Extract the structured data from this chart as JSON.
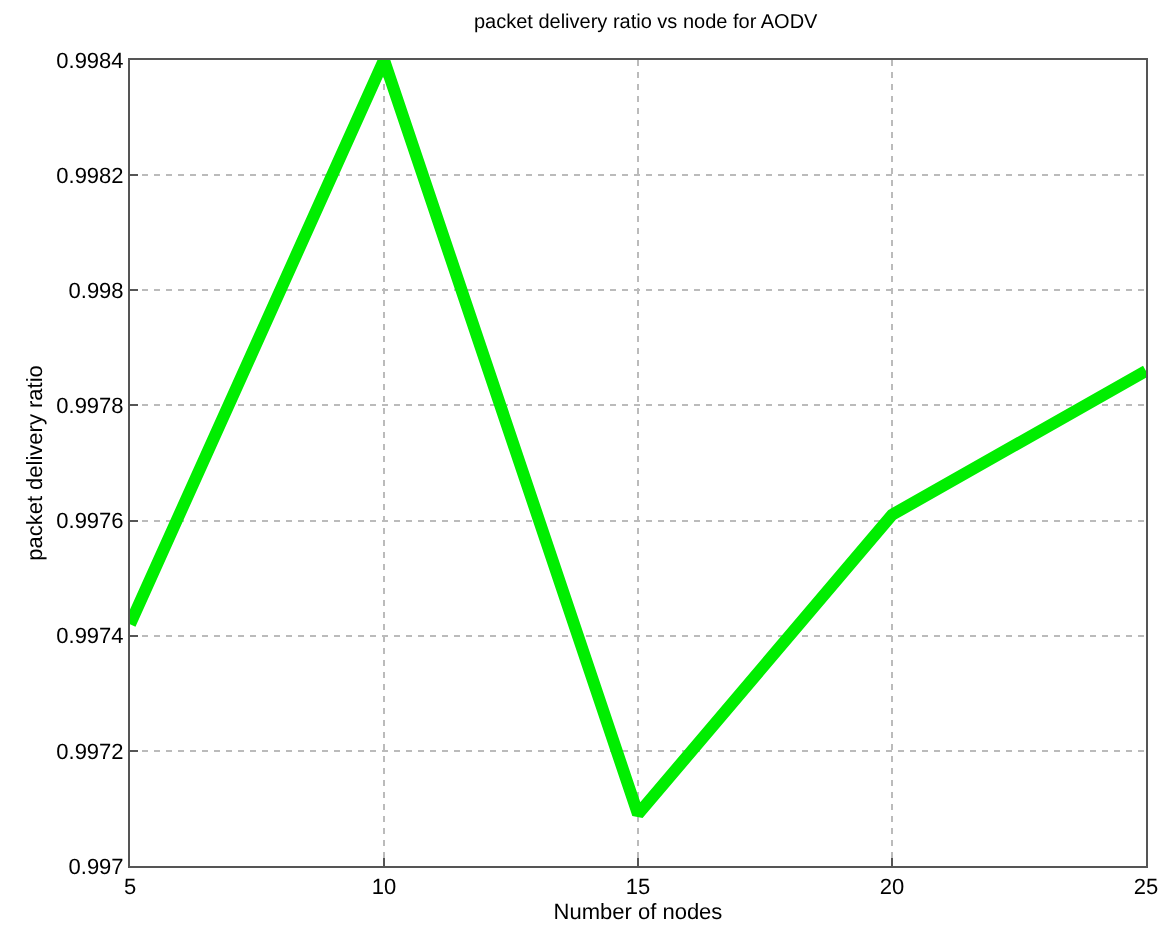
{
  "chart_data": {
    "type": "line",
    "title": "packet delivery ratio vs node for AODV",
    "xlabel": "Number of nodes",
    "ylabel": "packet delivery ratio",
    "x": [
      5,
      10,
      15,
      20,
      25
    ],
    "series": [
      {
        "color": "#00ee00",
        "values": [
          0.99742,
          0.9984,
          0.99709,
          0.99761,
          0.99786
        ]
      }
    ],
    "xlim": [
      5,
      25
    ],
    "xticks": [
      5,
      10,
      15,
      20,
      25
    ],
    "ylim": [
      0.997,
      0.9984
    ],
    "yticks": [
      0.997,
      0.9972,
      0.9974,
      0.9976,
      0.9978,
      0.998,
      0.9982,
      0.9984
    ],
    "grid": true,
    "marker": "none",
    "line_style": "solid",
    "legend": false
  }
}
